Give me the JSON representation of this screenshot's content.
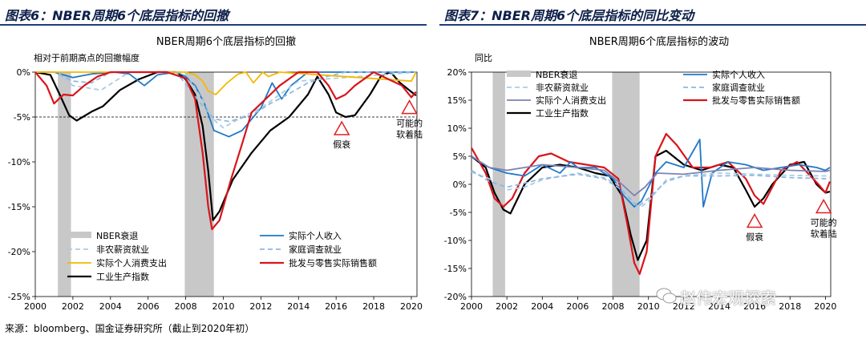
{
  "figures": [
    {
      "label": "图表6：NBER周期6个底层指标的回撤"
    },
    {
      "label": "图表7：NBER周期6个底层指标的同比变动"
    }
  ],
  "source": "来源：bloomberg、国金证券研究所（截止到2020年初）",
  "watermark": "赵伟宏观探索",
  "colors": {
    "recession": "#c8c8c8",
    "industrial": "#000000",
    "real_income": "#1f78c8",
    "payrolls": "#a9cde6",
    "household": "#8fb8e0",
    "consumption": "#f5b800",
    "consumption_right": "#7c83b4",
    "retail": "#d9141c",
    "anno": "#e02020"
  },
  "chart_data": [
    {
      "type": "line",
      "title": "NBER周期6个底层指标的回撤",
      "ylabel": "相对于前期高点的回撤幅度",
      "ylim": [
        -25,
        0
      ],
      "xlim": [
        2000,
        2020.3
      ],
      "yticks": [
        "0%",
        "-5%",
        "-10%",
        "-15%",
        "-20%",
        "-25%"
      ],
      "xticks": [
        "2000",
        "2002",
        "2004",
        "2006",
        "2008",
        "2010",
        "2012",
        "2014",
        "2016",
        "2018",
        "2020"
      ],
      "recessions": [
        [
          2001.2,
          2001.9
        ],
        [
          2007.95,
          2009.5
        ]
      ],
      "reference_line": {
        "y": -5
      },
      "annotations": [
        {
          "text": "假衰",
          "x": 2016.3,
          "y": -5
        },
        {
          "text": "可能的",
          "x": 2019.9,
          "y": -3
        },
        {
          "text": "软着陆",
          "x": 2019.9,
          "y": -3
        }
      ],
      "legend": [
        "NBER衰退",
        "实际个人收入",
        "非农薪资就业",
        "家庭调查就业",
        "实际个人消费支出",
        "批发与零售实际销售额",
        "工业生产指数"
      ],
      "series": [
        {
          "name": "工业生产指数",
          "x": [
            2000,
            2000.8,
            2001.3,
            2001.8,
            2002.2,
            2003,
            2003.6,
            2004.5,
            2005.5,
            2006.5,
            2007.5,
            2008.0,
            2008.5,
            2008.9,
            2009.2,
            2009.45,
            2009.8,
            2010.5,
            2011.5,
            2012.5,
            2013.5,
            2014.5,
            2015,
            2015.6,
            2016.0,
            2016.5,
            2017,
            2017.8,
            2018.4,
            2018.9,
            2019.4,
            2020.0,
            2020.25
          ],
          "y": [
            0,
            -0.3,
            -2.5,
            -4.8,
            -5.4,
            -4.4,
            -3.8,
            -2.0,
            -0.8,
            0,
            0,
            -0.8,
            -2.5,
            -6,
            -11,
            -16.5,
            -15.5,
            -12,
            -9,
            -6.5,
            -5,
            -2.5,
            -0.5,
            -2.5,
            -4.5,
            -5.0,
            -4.8,
            -2.5,
            -0.4,
            0,
            -1.2,
            -2.2,
            -2.6
          ]
        },
        {
          "name": "实际个人收入",
          "x": [
            2000,
            2001,
            2002,
            2003,
            2004.2,
            2005,
            2005.8,
            2006.5,
            2007.5,
            2008,
            2008.5,
            2009,
            2009.5,
            2010.3,
            2011,
            2012,
            2012.6,
            2013.1,
            2013.6,
            2014.5,
            2016,
            2018,
            2020,
            2020.25
          ],
          "y": [
            0,
            0,
            -0.6,
            -0.2,
            0,
            -0.2,
            -1.5,
            -0.3,
            0,
            -0.5,
            -1.5,
            -3.5,
            -6.5,
            -7.2,
            -6.5,
            -4,
            -1.2,
            -3,
            -1.5,
            0,
            0,
            0,
            0,
            0
          ]
        },
        {
          "name": "非农薪资就业",
          "x": [
            2000,
            2001.2,
            2002,
            2003.5,
            2005,
            2008,
            2009,
            2009.6,
            2010,
            2011,
            2012,
            2013,
            2014,
            2020.25
          ],
          "y": [
            0,
            0,
            -1.5,
            -2,
            0,
            0,
            -3.5,
            -5.5,
            -6.2,
            -5,
            -4,
            -2.5,
            -1,
            0
          ]
        },
        {
          "name": "家庭调查就业",
          "x": [
            2000,
            2001,
            2002,
            2003,
            2004,
            2007.5,
            2008.8,
            2009.5,
            2010.3,
            2011.5,
            2012.5,
            2013.5,
            2014.5,
            2015.5,
            2016.5,
            2020.25
          ],
          "y": [
            0,
            0,
            -1,
            -1.2,
            0,
            0,
            -3.5,
            -5.2,
            -5.5,
            -4.8,
            -3.5,
            -2.4,
            -1.2,
            -0.5,
            0,
            0
          ]
        },
        {
          "name": "实际个人消费支出",
          "x": [
            2000,
            2008,
            2008.5,
            2008.9,
            2009.2,
            2009.6,
            2010.2,
            2010.8,
            2011.2,
            2011.6,
            2012.1,
            2012.4,
            2013,
            2020,
            2020.25
          ],
          "y": [
            0,
            0,
            -0.3,
            -1,
            -2.1,
            -2.5,
            -1.2,
            -0.2,
            0,
            -1.2,
            0,
            -0.5,
            0,
            -1,
            0
          ]
        },
        {
          "name": "批发与零售实际销售额",
          "x": [
            2000,
            2000.6,
            2001.0,
            2001.5,
            2002.0,
            2002.6,
            2003.3,
            2004,
            2005,
            2006,
            2007,
            2008,
            2008.5,
            2008.9,
            2009.2,
            2009.4,
            2009.8,
            2010.4,
            2011.0,
            2011.5,
            2012,
            2012.5,
            2013,
            2014,
            2015,
            2015.6,
            2016.0,
            2016.5,
            2017,
            2018,
            2018.8,
            2019.5,
            2020,
            2020.25
          ],
          "y": [
            0,
            -1.5,
            -3.5,
            -2.5,
            -2.6,
            -1.5,
            -0.5,
            0,
            0,
            0,
            0,
            -0.7,
            -3,
            -9,
            -15,
            -17.5,
            -16.5,
            -12,
            -8,
            -4.5,
            -3.5,
            -2.5,
            -1.5,
            0,
            0,
            -1.5,
            -3,
            -2.5,
            -1.5,
            0,
            -0.8,
            -1.5,
            -2.8,
            -2.2
          ]
        }
      ]
    },
    {
      "type": "line",
      "title": "NBER周期6个底层指标的波动",
      "ylabel": "同比",
      "ylim": [
        -20,
        20
      ],
      "xlim": [
        2000,
        2020.3
      ],
      "yticks": [
        "20%",
        "15%",
        "10%",
        "5%",
        "0%",
        "-5%",
        "-10%",
        "-15%",
        "-20%"
      ],
      "xticks": [
        "2000",
        "2002",
        "2004",
        "2006",
        "2008",
        "2010",
        "2012",
        "2014",
        "2016",
        "2018",
        "2020"
      ],
      "recessions": [
        [
          2001.2,
          2001.9
        ],
        [
          2007.95,
          2009.5
        ]
      ],
      "annotations": [
        {
          "text": "假衰",
          "x": 2016.0,
          "y": -4.5
        },
        {
          "text": "可能的",
          "x": 2019.9,
          "y": -2.5
        },
        {
          "text": "软着陆",
          "x": 2019.9,
          "y": -2.5
        }
      ],
      "legend": [
        "NBER衰退",
        "实际个人收入",
        "非农薪资就业",
        "家庭调查就业",
        "实际个人消费支出",
        "批发与零售实际销售额",
        "工业生产指数"
      ],
      "series": [
        {
          "name": "工业生产指数",
          "x": [
            2000,
            2000.8,
            2001.3,
            2001.8,
            2002.2,
            2003,
            2004,
            2005,
            2006,
            2007,
            2007.8,
            2008.5,
            2009.0,
            2009.4,
            2009.9,
            2010.4,
            2011,
            2012,
            2013,
            2014,
            2014.8,
            2015.5,
            2016.0,
            2016.5,
            2017,
            2018,
            2018.8,
            2019.5,
            2020,
            2020.25
          ],
          "y": [
            5,
            3,
            -1.5,
            -4.5,
            -5.2,
            0,
            3,
            3.5,
            3,
            2,
            1.5,
            -2,
            -9,
            -13.5,
            -10,
            5,
            6,
            3.5,
            2.5,
            3.5,
            3,
            -1,
            -4,
            -2.5,
            0,
            3.5,
            4,
            0,
            -1.5,
            -1.3
          ]
        },
        {
          "name": "批发与零售实际销售额",
          "x": [
            2000,
            2000.8,
            2001.3,
            2001.8,
            2002.3,
            2003,
            2003.8,
            2004.5,
            2005.5,
            2006.5,
            2007.5,
            2008.3,
            2008.8,
            2009.2,
            2009.5,
            2009.9,
            2010.4,
            2011,
            2011.6,
            2012.5,
            2013.5,
            2014.5,
            2015.5,
            2016.0,
            2016.5,
            2017.5,
            2018.4,
            2019,
            2019.6,
            2020,
            2020.25
          ],
          "y": [
            6.5,
            2,
            -2.5,
            -4,
            -2.5,
            2,
            5,
            5.5,
            4,
            3.5,
            3,
            1,
            -7,
            -14,
            -16,
            -12,
            5,
            9,
            7,
            3,
            3,
            4,
            1,
            -2,
            -3.5,
            2.5,
            4,
            2,
            0,
            -1.5,
            0.5
          ]
        },
        {
          "name": "实际个人收入",
          "x": [
            2000,
            2001,
            2002,
            2003,
            2004,
            2005,
            2005.6,
            2006,
            2007,
            2008,
            2008.6,
            2009.2,
            2009.6,
            2010.4,
            2011,
            2012,
            2012.9,
            2013.1,
            2013.6,
            2014.5,
            2015.5,
            2016.5,
            2017.5,
            2018.5,
            2019.5,
            2020,
            2020.25
          ],
          "y": [
            5,
            3,
            2,
            1.5,
            3.5,
            2,
            4,
            3,
            3,
            1,
            -2,
            -4,
            -3,
            2,
            4,
            3,
            8,
            -4,
            2,
            4,
            3.5,
            2.5,
            3,
            3.5,
            3,
            2.5,
            3
          ]
        },
        {
          "name": "实际个人消费支出",
          "x": [
            2000,
            2001,
            2002,
            2003,
            2004,
            2006,
            2007.5,
            2008.5,
            2009.2,
            2009.8,
            2010.5,
            2012,
            2014,
            2016,
            2018,
            2020,
            2020.25
          ],
          "y": [
            5,
            3,
            2.5,
            3,
            3.5,
            3,
            2.5,
            0,
            -2,
            -0.5,
            2,
            1.8,
            2.5,
            3,
            2.5,
            2.3,
            2.5
          ]
        },
        {
          "name": "非农薪资就业",
          "x": [
            2000,
            2001,
            2002,
            2003,
            2004,
            2006,
            2007.5,
            2008.5,
            2009.4,
            2010,
            2011,
            2012,
            2014,
            2016,
            2018,
            2020,
            2020.25
          ],
          "y": [
            2.2,
            1,
            -1,
            -0.5,
            0.8,
            2,
            1.2,
            -0.5,
            -4.5,
            -3,
            0.8,
            1.5,
            2,
            1.8,
            1.6,
            1.5,
            1.4
          ]
        },
        {
          "name": "家庭调查就业",
          "x": [
            2000,
            2001,
            2002,
            2003,
            2004,
            2006,
            2007.5,
            2008.5,
            2009.4,
            2010,
            2011,
            2012,
            2014,
            2016,
            2018,
            2020,
            2020.25
          ],
          "y": [
            2.5,
            0.5,
            -0.5,
            0.2,
            1,
            1.8,
            1,
            -1,
            -4,
            -2.5,
            0.5,
            1.5,
            1.5,
            1.6,
            1.2,
            1,
            1.1
          ]
        }
      ]
    }
  ]
}
